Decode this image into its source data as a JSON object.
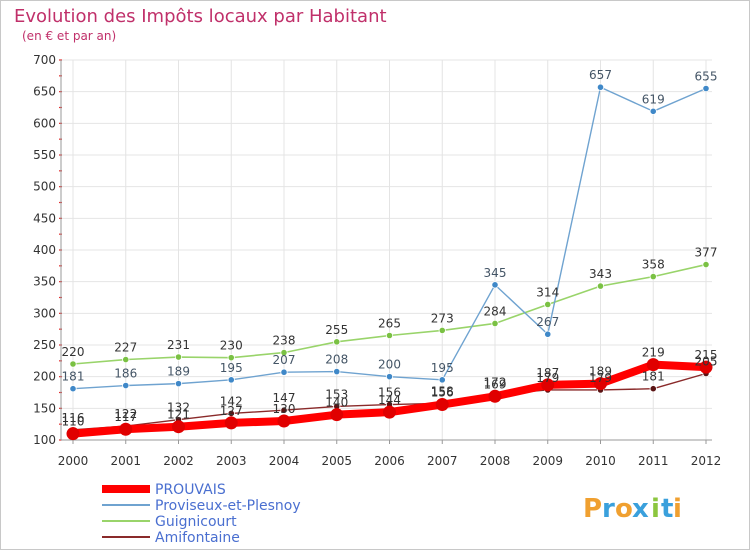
{
  "chart_data": {
    "type": "line",
    "title": "Evolution des Impôts locaux par Habitant",
    "subtitle": "(en € et par an)",
    "x": [
      "2000",
      "2001",
      "2002",
      "2003",
      "2004",
      "2005",
      "2006",
      "2007",
      "2008",
      "2009",
      "2010",
      "2011",
      "2012"
    ],
    "y_ticks": [
      "100",
      "150",
      "200",
      "250",
      "300",
      "350",
      "400",
      "450",
      "500",
      "550",
      "600",
      "650",
      "700"
    ],
    "ylim": [
      100,
      700
    ],
    "series": [
      {
        "name": "Guignicourt",
        "color": "#99d46a",
        "marker_color": "#7ac143",
        "label_color": "#333333",
        "values": [
          220,
          227,
          231,
          230,
          238,
          255,
          265,
          273,
          284,
          314,
          343,
          358,
          377
        ],
        "labels": [
          "220",
          "227",
          "231",
          "230",
          "238",
          "255",
          "265",
          "273",
          "284",
          "314",
          "343",
          "358",
          "377"
        ]
      },
      {
        "name": "Proviseux-et-Plesnoy",
        "color": "#6fa3d0",
        "marker_color": "#3f88c8",
        "label_color": "#445566",
        "values": [
          181,
          186,
          189,
          195,
          207,
          208,
          200,
          195,
          345,
          267,
          657,
          619,
          655
        ],
        "labels": [
          "181",
          "186",
          "189",
          "195",
          "207",
          "208",
          "200",
          "195",
          "345",
          "267",
          "657",
          "619",
          "655"
        ]
      },
      {
        "name": "Amifontaine",
        "color": "#8a2a2a",
        "marker_color": "#5a1414",
        "label_color": "#333333",
        "values": [
          116,
          122,
          132,
          142,
          147,
          153,
          156,
          158,
          172,
          179,
          179,
          181,
          205
        ],
        "labels": [
          "116",
          "122",
          "132",
          "142",
          "147",
          "153",
          "156",
          "158",
          "172",
          "179",
          "179",
          "181",
          "205"
        ]
      },
      {
        "name": "PROUVAIS",
        "color": "#ff0000",
        "marker_color": "#e00000",
        "label_color": "#333333",
        "values": [
          110,
          117,
          121,
          127,
          130,
          140,
          144,
          156,
          169,
          187,
          189,
          219,
          215
        ],
        "labels": [
          "110",
          "117",
          "121",
          "127",
          "130",
          "140",
          "144",
          "156",
          "169",
          "187",
          "189",
          "219",
          "215"
        ]
      }
    ],
    "legend_order": [
      "PROUVAIS",
      "Proviseux-et-Plesnoy",
      "Guignicourt",
      "Amifontaine"
    ],
    "legend_position": "bottom-left"
  },
  "logo": {
    "text": "Proxiti",
    "letters": [
      "P",
      "r",
      "o",
      "x",
      "i",
      "t",
      "i"
    ],
    "colors": [
      "#f0a030",
      "#3aa0dc",
      "#f0a030",
      "#3aa0dc",
      "#8cc63f",
      "#3aa0dc",
      "#f0a030"
    ]
  }
}
